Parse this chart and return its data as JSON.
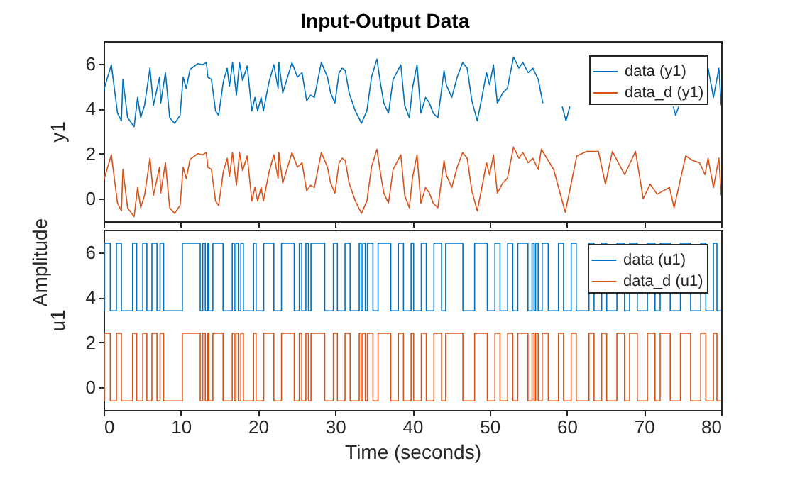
{
  "chart_data": [
    {
      "type": "line",
      "title": "Input-Output Data",
      "ylabel": "y1",
      "annotations": [
        "Amplitude"
      ],
      "xlim": [
        0,
        80
      ],
      "xticks": [
        0,
        10,
        20,
        30,
        40,
        50,
        60,
        70,
        80
      ],
      "ylim": [
        -1,
        7
      ],
      "yticks": [
        0,
        2,
        4,
        6
      ],
      "tick_labels": "y",
      "legend": "top right",
      "series": [
        {
          "name": "data (y1)",
          "color": "#0072bd",
          "x": [
            0,
            1.0,
            1.8,
            2.3,
            2.5,
            3.1,
            3.95,
            4.4,
            4.8,
            5.3,
            6.0,
            6.45,
            7.24,
            7.4,
            8.0,
            8.56,
            9.2,
            9.9,
            10.3,
            10.7,
            11.2,
            12.2,
            12.8,
            13.3,
            13.5,
            13.96,
            14.5,
            14.9,
            15.5,
            16.0,
            16.3,
            16.7,
            17.2,
            17.6,
            18.0,
            18.6,
            19.2,
            19.6,
            19.95,
            20.4,
            20.7,
            21.4,
            22.05,
            22.6,
            22.7,
            23.2,
            23.6,
            24.4,
            25.1,
            25.7,
            26.3,
            26.8,
            27.3,
            28.2,
            29.0,
            29.4,
            29.96,
            30.5,
            30.9,
            31.3,
            31.8,
            32.6,
            33.4,
            34.1,
            34.7,
            35.4,
            35.9,
            36.3,
            36.9,
            37.5,
            38.5,
            39.0,
            39.6,
            40.0,
            40.6,
            41.1,
            41.7,
            42.2,
            42.7,
            43.3,
            44.1,
            44.4,
            45.1,
            45.8,
            46.5,
            47.1,
            47.7,
            48.4,
            49.0,
            49.6,
            50.0,
            50.5,
            51.0,
            51.7,
            52.3,
            53.1,
            53.8,
            54.3,
            55.0,
            55.6,
            56.3,
            56.9,
            57.8,
            59.4,
            59.9,
            60.4,
            60.8,
            73.8,
            74.1,
            74.5,
            77.5,
            78.3,
            79.0,
            79.7,
            80
          ],
          "values": [
            4.8,
            5.95,
            3.8,
            3.46,
            5.3,
            3.6,
            3.2,
            4.5,
            3.6,
            4.15,
            5.8,
            4.15,
            5.4,
            4.25,
            5.6,
            3.6,
            3.35,
            3.7,
            5.4,
            4.9,
            5.75,
            6.0,
            5.95,
            6.05,
            5.4,
            5.3,
            3.9,
            3.7,
            5.2,
            5.8,
            5.0,
            6.05,
            4.6,
            6.05,
            5.25,
            5.9,
            3.9,
            4.5,
            3.9,
            4.5,
            3.9,
            5.15,
            5.95,
            4.9,
            6.05,
            4.7,
            5.15,
            6.05,
            5.4,
            5.6,
            4.35,
            4.6,
            4.5,
            6.05,
            5.4,
            4.7,
            4.25,
            5.6,
            5.8,
            5.7,
            4.7,
            3.9,
            3.35,
            3.9,
            5.4,
            6.2,
            5.05,
            4.25,
            3.8,
            5.3,
            5.95,
            4.15,
            3.6,
            4.9,
            5.95,
            3.8,
            4.5,
            4.25,
            3.8,
            3.6,
            5.7,
            5.05,
            4.5,
            5.4,
            6.05,
            5.8,
            4.35,
            3.46,
            4.5,
            5.6,
            5.05,
            5.95,
            4.25,
            4.7,
            4.9,
            6.3,
            5.8,
            6.05,
            5.6,
            5.8,
            5.3,
            4.25,
            null,
            4.1,
            3.46,
            4.1,
            null,
            4.1,
            3.7,
            4.1,
            null,
            5.8,
            4.5,
            5.8,
            4.15
          ]
        },
        {
          "name": "data_d (y1)",
          "color": "#d95319",
          "x": [
            0,
            1.0,
            1.8,
            2.3,
            2.5,
            3.1,
            3.95,
            4.4,
            4.8,
            5.3,
            6.0,
            6.45,
            7.24,
            7.4,
            8.0,
            8.56,
            9.2,
            9.9,
            10.3,
            10.7,
            11.2,
            12.2,
            12.8,
            13.3,
            13.5,
            13.96,
            14.5,
            14.9,
            15.5,
            16.0,
            16.3,
            16.7,
            17.2,
            17.6,
            18.0,
            18.6,
            19.2,
            19.6,
            19.95,
            20.4,
            20.7,
            21.4,
            22.05,
            22.6,
            22.7,
            23.2,
            23.6,
            24.4,
            25.1,
            25.7,
            26.3,
            26.8,
            27.3,
            28.2,
            29.0,
            29.4,
            29.96,
            30.5,
            30.9,
            31.3,
            31.8,
            32.6,
            33.4,
            34.1,
            34.7,
            35.4,
            35.9,
            36.3,
            36.9,
            37.5,
            38.5,
            39.0,
            39.6,
            40.0,
            40.6,
            41.1,
            41.7,
            42.2,
            42.7,
            43.3,
            44.1,
            44.4,
            45.1,
            45.8,
            46.5,
            47.1,
            47.7,
            48.4,
            49.0,
            49.6,
            50.0,
            50.5,
            51.0,
            51.7,
            52.3,
            53.1,
            53.8,
            54.3,
            55.0,
            55.6,
            56.3,
            56.7,
            58.3,
            59.8,
            61.3,
            62.6,
            64.1,
            65.0,
            65.9,
            67.5,
            68.9,
            69.9,
            70.8,
            71.7,
            73.3,
            73.9,
            75.4,
            76.3,
            77.2,
            77.9,
            78.3,
            79.0,
            79.7,
            80
          ],
          "values": [
            0.8,
            1.95,
            -0.2,
            -0.54,
            1.3,
            -0.4,
            -0.8,
            0.5,
            -0.4,
            0.15,
            1.8,
            0.15,
            1.4,
            0.25,
            1.6,
            -0.4,
            -0.65,
            -0.3,
            1.4,
            0.9,
            1.75,
            2.0,
            1.95,
            2.05,
            1.4,
            1.3,
            -0.1,
            -0.3,
            1.2,
            1.8,
            1.0,
            2.05,
            0.6,
            2.05,
            1.25,
            1.9,
            -0.1,
            0.5,
            -0.1,
            0.5,
            -0.1,
            1.15,
            1.95,
            0.9,
            2.05,
            0.7,
            1.15,
            2.05,
            1.4,
            1.6,
            0.35,
            0.6,
            0.5,
            2.05,
            1.4,
            0.7,
            0.25,
            1.6,
            1.8,
            1.7,
            0.7,
            -0.1,
            -0.65,
            -0.1,
            1.4,
            2.2,
            1.05,
            0.25,
            -0.2,
            1.3,
            1.95,
            0.15,
            -0.4,
            0.9,
            1.95,
            -0.2,
            0.5,
            0.25,
            -0.2,
            -0.4,
            1.7,
            1.05,
            0.5,
            1.4,
            2.05,
            1.8,
            0.35,
            -0.54,
            0.5,
            1.6,
            1.05,
            1.95,
            0.25,
            0.7,
            0.9,
            2.3,
            1.8,
            2.05,
            1.6,
            1.8,
            1.3,
            2.2,
            1.3,
            -0.6,
            1.9,
            2.1,
            2.1,
            0.65,
            2.1,
            1.07,
            2.1,
            0,
            0.65,
            0.2,
            0.5,
            -0.4,
            1.9,
            1.7,
            1.6,
            1.07,
            1.8,
            0.5,
            1.8,
            0.15
          ]
        }
      ]
    },
    {
      "type": "step",
      "ylabel": "u1",
      "xlabel": "Time (seconds)",
      "xlim": [
        0,
        80
      ],
      "xticks": [
        0,
        10,
        20,
        30,
        40,
        50,
        60,
        70,
        80
      ],
      "ylim": [
        -1,
        7
      ],
      "yticks": [
        0,
        2,
        4,
        6
      ],
      "legend": "top right",
      "x": [
        0,
        0.13,
        0.86,
        1.65,
        2.3,
        3.75,
        4.28,
        5.07,
        5.6,
        6.25,
        6.91,
        7.31,
        7.77,
        10.2,
        12.51,
        12.84,
        13.17,
        13.5,
        13.63,
        14.15,
        15.47,
        16.66,
        16.92,
        17.12,
        17.45,
        17.77,
        18.1,
        19.42,
        19.75,
        20.74,
        22.05,
        23.04,
        24.69,
        25.35,
        25.67,
        26.2,
        26.53,
        26.86,
        28.64,
        29.76,
        30.28,
        31.27,
        31.93,
        33.11,
        33.37,
        33.57,
        33.9,
        34.17,
        34.89,
        35.55,
        37.2,
        38.18,
        38.84,
        39.83,
        40.16,
        41.15,
        41.8,
        42.79,
        43.78,
        44.31,
        46.54,
        48.06,
        49.7,
        50.69,
        51.35,
        52.34,
        53.0,
        53.65,
        54.97,
        55.5,
        55.76,
        55.96,
        56.29,
        56.81,
        57.6,
        58.92,
        59.58,
        60.57,
        61.22,
        62.87,
        63.53,
        64.52,
        65.17,
        66.49,
        67.48,
        68.14,
        69.13,
        70.44,
        71.43,
        72.09,
        73.4,
        74.72,
        76.04,
        77.35,
        78.01,
        78.99,
        79.45,
        80
      ],
      "series": [
        {
          "name": "data (u1)",
          "color": "#0072bd",
          "values": [
            3.4,
            6.4,
            3.4,
            6.4,
            3.4,
            6.4,
            3.4,
            6.4,
            3.4,
            6.4,
            3.4,
            6.4,
            3.4,
            6.4,
            3.4,
            6.4,
            3.4,
            6.4,
            3.4,
            6.4,
            3.4,
            6.4,
            3.4,
            6.4,
            3.4,
            6.4,
            3.4,
            6.4,
            3.4,
            6.4,
            3.4,
            6.4,
            3.4,
            6.4,
            3.4,
            6.4,
            3.4,
            6.4,
            3.4,
            6.4,
            3.4,
            6.4,
            3.4,
            6.4,
            3.4,
            6.4,
            3.4,
            6.4,
            3.4,
            6.4,
            3.4,
            6.4,
            3.4,
            6.4,
            3.4,
            6.4,
            3.4,
            6.4,
            3.4,
            6.4,
            3.4,
            6.4,
            3.4,
            6.4,
            3.4,
            6.4,
            3.4,
            6.4,
            3.4,
            6.4,
            3.4,
            6.4,
            3.4,
            6.4,
            3.4,
            6.4,
            3.4,
            6.4,
            3.4,
            6.4,
            3.4,
            6.4,
            3.4,
            6.4,
            3.4,
            6.4,
            3.4,
            6.4,
            3.4,
            6.4,
            3.4,
            6.4,
            3.4,
            6.4,
            3.4,
            6.4,
            3.4,
            3.4
          ]
        },
        {
          "name": "data_d (u1)",
          "color": "#d95319",
          "values": [
            -0.6,
            2.4,
            -0.6,
            2.4,
            -0.6,
            2.4,
            -0.6,
            2.4,
            -0.6,
            2.4,
            -0.6,
            2.4,
            -0.6,
            2.4,
            -0.6,
            2.4,
            -0.6,
            2.4,
            -0.6,
            2.4,
            -0.6,
            2.4,
            -0.6,
            2.4,
            -0.6,
            2.4,
            -0.6,
            2.4,
            -0.6,
            2.4,
            -0.6,
            2.4,
            -0.6,
            2.4,
            -0.6,
            2.4,
            -0.6,
            2.4,
            -0.6,
            2.4,
            -0.6,
            2.4,
            -0.6,
            2.4,
            -0.6,
            2.4,
            -0.6,
            2.4,
            -0.6,
            2.4,
            -0.6,
            2.4,
            -0.6,
            2.4,
            -0.6,
            2.4,
            -0.6,
            2.4,
            -0.6,
            2.4,
            -0.6,
            2.4,
            -0.6,
            2.4,
            -0.6,
            2.4,
            -0.6,
            2.4,
            -0.6,
            2.4,
            -0.6,
            2.4,
            -0.6,
            2.4,
            -0.6,
            2.4,
            -0.6,
            2.4,
            -0.6,
            2.4,
            -0.6,
            2.4,
            -0.6,
            2.4,
            -0.6,
            2.4,
            -0.6,
            2.4,
            -0.6,
            2.4,
            -0.6,
            2.4,
            -0.6,
            2.4,
            -0.6,
            2.4,
            -0.6,
            -0.6
          ]
        }
      ]
    }
  ]
}
